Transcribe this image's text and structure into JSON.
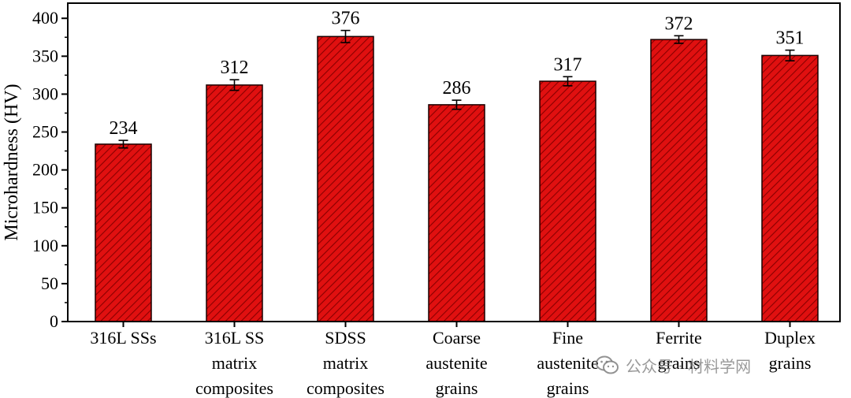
{
  "chart_data": {
    "type": "bar",
    "categories": [
      [
        "316L SSs"
      ],
      [
        "316L SS",
        "matrix",
        "composites"
      ],
      [
        "SDSS",
        "matrix",
        "composites"
      ],
      [
        "Coarse",
        "austenite",
        "grains"
      ],
      [
        "Fine",
        "austenite",
        "grains"
      ],
      [
        "Ferrite",
        "grains"
      ],
      [
        "Duplex",
        "grains"
      ]
    ],
    "values": [
      234,
      312,
      376,
      286,
      317,
      372,
      351
    ],
    "errors": [
      5,
      7,
      8,
      6,
      6,
      5,
      7
    ],
    "value_labels": [
      "234",
      "312",
      "376",
      "286",
      "317",
      "372",
      "351"
    ],
    "ylabel": "Microhardness (HV)",
    "xlabel": "",
    "ylim": [
      0,
      420
    ],
    "yticks": [
      0,
      50,
      100,
      150,
      200,
      250,
      300,
      350,
      400
    ],
    "bar_color": "#e01010",
    "hatch_color": "#8a0000",
    "grid": false
  },
  "watermark": {
    "text": "公众号 · 材料学网",
    "icon": "wechat-icon"
  }
}
